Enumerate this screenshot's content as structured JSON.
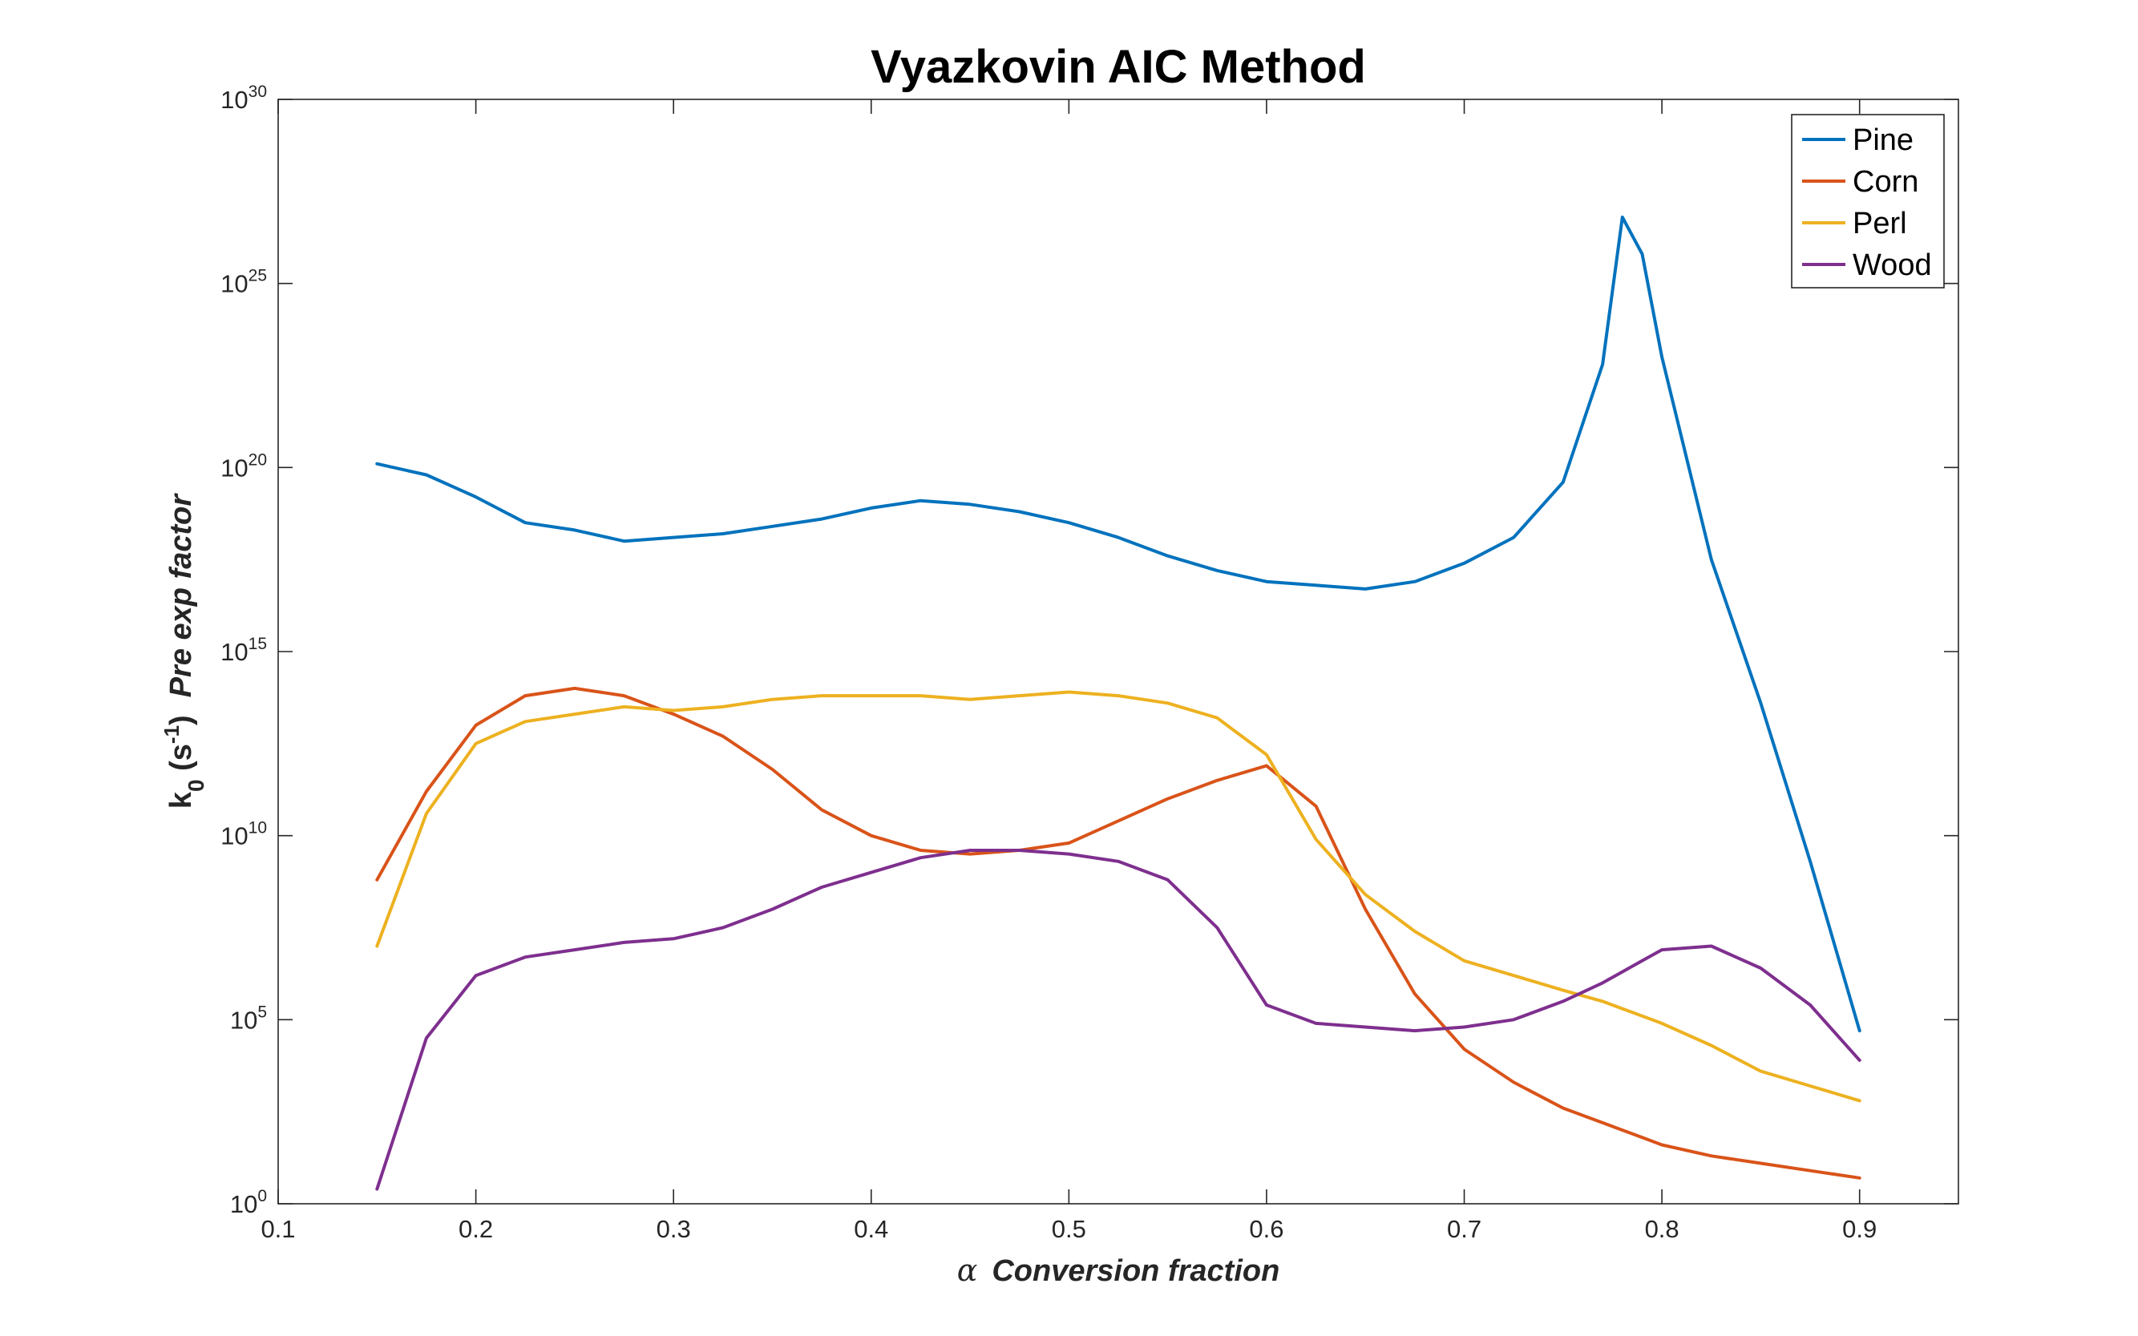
{
  "chart_data": {
    "type": "line",
    "title": "Vyazkovin AIC Method",
    "xlabel_symbol": "α",
    "xlabel_text": "Conversion fraction",
    "ylabel_prefix": "k",
    "ylabel_sub": "0",
    "ylabel_units_open": " (s",
    "ylabel_units_exp": "-1",
    "ylabel_units_close": ")",
    "ylabel_text": "Pre exp factor",
    "xlim": [
      0.1,
      0.95
    ],
    "ylim_log10": [
      0,
      30
    ],
    "yscale": "log",
    "grid": false,
    "legend_position": "top-right",
    "x_ticks": [
      "0.1",
      "0.2",
      "0.3",
      "0.4",
      "0.5",
      "0.6",
      "0.7",
      "0.8",
      "0.9"
    ],
    "y_ticks": [
      {
        "base": "10",
        "exp": "0"
      },
      {
        "base": "10",
        "exp": "5"
      },
      {
        "base": "10",
        "exp": "10"
      },
      {
        "base": "10",
        "exp": "15"
      },
      {
        "base": "10",
        "exp": "20"
      },
      {
        "base": "10",
        "exp": "25"
      },
      {
        "base": "10",
        "exp": "30"
      }
    ],
    "x": [
      0.15,
      0.175,
      0.2,
      0.225,
      0.25,
      0.275,
      0.3,
      0.325,
      0.35,
      0.375,
      0.4,
      0.425,
      0.45,
      0.475,
      0.5,
      0.525,
      0.55,
      0.575,
      0.6,
      0.625,
      0.65,
      0.675,
      0.7,
      0.725,
      0.75,
      0.77,
      0.78,
      0.79,
      0.8,
      0.825,
      0.85,
      0.875,
      0.9
    ],
    "series": [
      {
        "name": "Pine",
        "color": "#0072BD",
        "log10_values": [
          20.1,
          19.8,
          19.2,
          18.5,
          18.3,
          18.0,
          18.1,
          18.2,
          18.4,
          18.6,
          18.9,
          19.1,
          19.0,
          18.8,
          18.5,
          18.1,
          17.6,
          17.2,
          16.9,
          16.8,
          16.7,
          16.9,
          17.4,
          18.1,
          19.6,
          22.8,
          26.8,
          25.8,
          23.0,
          17.5,
          13.6,
          9.3,
          4.7
        ]
      },
      {
        "name": "Corn",
        "color": "#D95319",
        "log10_values": [
          8.8,
          11.2,
          13.0,
          13.8,
          14.0,
          13.8,
          13.3,
          12.7,
          11.8,
          10.7,
          10.0,
          9.6,
          9.5,
          9.6,
          9.8,
          10.4,
          11.0,
          11.5,
          11.9,
          10.8,
          8.0,
          5.7,
          4.2,
          3.3,
          2.6,
          2.2,
          2.0,
          1.8,
          1.6,
          1.3,
          1.1,
          0.9,
          0.7
        ]
      },
      {
        "name": "Perl",
        "color": "#EDB120",
        "log10_values": [
          7.0,
          10.6,
          12.5,
          13.1,
          13.3,
          13.5,
          13.4,
          13.5,
          13.7,
          13.8,
          13.8,
          13.8,
          13.7,
          13.8,
          13.9,
          13.8,
          13.6,
          13.2,
          12.2,
          9.9,
          8.4,
          7.4,
          6.6,
          6.2,
          5.8,
          5.5,
          5.3,
          5.1,
          4.9,
          4.3,
          3.6,
          3.2,
          2.8
        ]
      },
      {
        "name": "Wood",
        "color": "#7E2F8E",
        "log10_values": [
          0.4,
          4.5,
          6.2,
          6.7,
          6.9,
          7.1,
          7.2,
          7.5,
          8.0,
          8.6,
          9.0,
          9.4,
          9.6,
          9.6,
          9.5,
          9.3,
          8.8,
          7.5,
          5.4,
          4.9,
          4.8,
          4.7,
          4.8,
          5.0,
          5.5,
          6.0,
          6.3,
          6.6,
          6.9,
          7.0,
          6.4,
          5.4,
          3.9
        ]
      }
    ]
  }
}
